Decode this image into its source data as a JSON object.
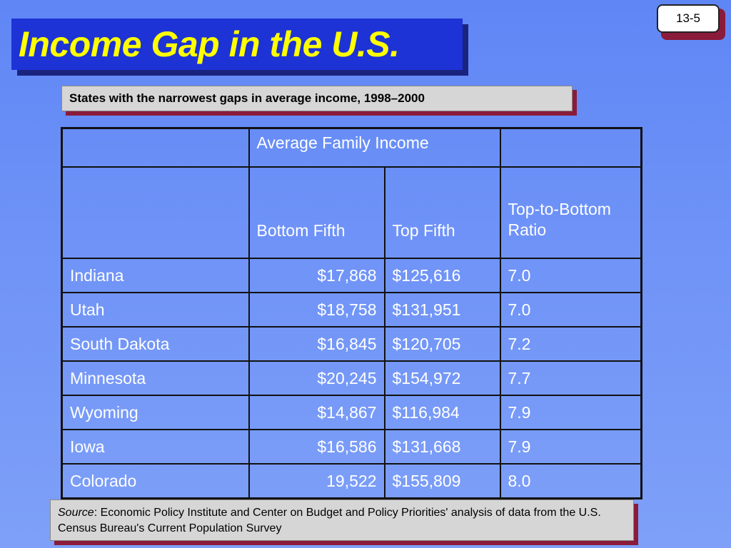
{
  "slide_number": "13-5",
  "title": "Income Gap in the U.S.",
  "subtitle": "States with the narrowest gaps in average income, 1998–2000",
  "table": {
    "group_header": "Average Family Income",
    "columns": [
      "Bottom Fifth",
      "Top Fifth",
      "Top-to-Bottom Ratio"
    ],
    "rows": [
      {
        "state": "Indiana",
        "bottom": "$17,868",
        "top": "$125,616",
        "ratio": "7.0"
      },
      {
        "state": "Utah",
        "bottom": "$18,758",
        "top": "$131,951",
        "ratio": "7.0"
      },
      {
        "state": "South Dakota",
        "bottom": "$16,845",
        "top": "$120,705",
        "ratio": "7.2"
      },
      {
        "state": "Minnesota",
        "bottom": "$20,245",
        "top": "$154,972",
        "ratio": "7.7"
      },
      {
        "state": "Wyoming",
        "bottom": "$14,867",
        "top": "$116,984",
        "ratio": "7.9"
      },
      {
        "state": "Iowa",
        "bottom": "$16,586",
        "top": "$131,668",
        "ratio": "7.9"
      },
      {
        "state": "Colorado",
        "bottom": "19,522",
        "top": "$155,809",
        "ratio": "8.0"
      }
    ]
  },
  "source": {
    "label": "Source",
    "separator": ":",
    "text": " Economic Policy Institute and Center on Budget and Policy Priorities' analysis of data from the U.S. Census Bureau's Current Population Survey"
  }
}
